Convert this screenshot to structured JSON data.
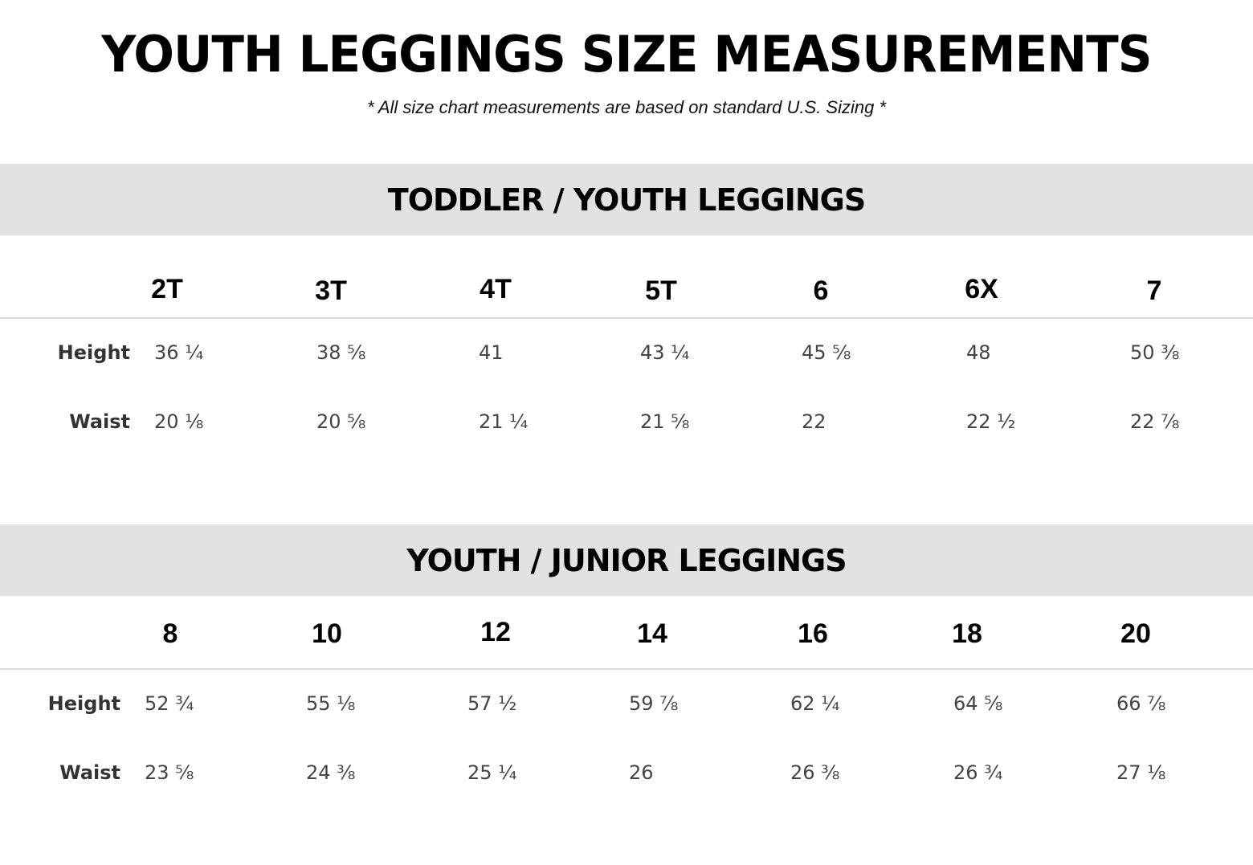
{
  "header": {
    "title": "YOUTH LEGGINGS SIZE MEASUREMENTS",
    "subtitle": "* All size chart measurements are based on standard U.S. Sizing *"
  },
  "sections": [
    {
      "title": "TODDLER / YOUTH LEGGINGS",
      "sizes": [
        "2T",
        "3T",
        "4T",
        "5T",
        "6",
        "6X",
        "7"
      ],
      "rows": [
        {
          "label": "Height",
          "values": [
            "36 ¼",
            "38 ⅝",
            "41",
            "43 ¼",
            "45 ⅝",
            "48",
            "50 ⅜"
          ]
        },
        {
          "label": "Waist",
          "values": [
            "20 ⅛",
            "20 ⅝",
            "21 ¼",
            "21 ⅝",
            "22",
            "22 ½",
            "22 ⅞"
          ]
        }
      ]
    },
    {
      "title": "YOUTH / JUNIOR LEGGINGS",
      "sizes": [
        "8",
        "10",
        "12",
        "14",
        "16",
        "18",
        "20"
      ],
      "rows": [
        {
          "label": "Height",
          "values": [
            "52 ¾",
            "55 ⅛",
            "57 ½",
            "59 ⅞",
            "62 ¼",
            "64 ⅝",
            "66 ⅞"
          ]
        },
        {
          "label": "Waist",
          "values": [
            "23 ⅝",
            "24 ⅜",
            "25 ¼",
            "26",
            "26 ⅜",
            "26 ¾",
            "27 ⅛"
          ]
        }
      ]
    }
  ]
}
